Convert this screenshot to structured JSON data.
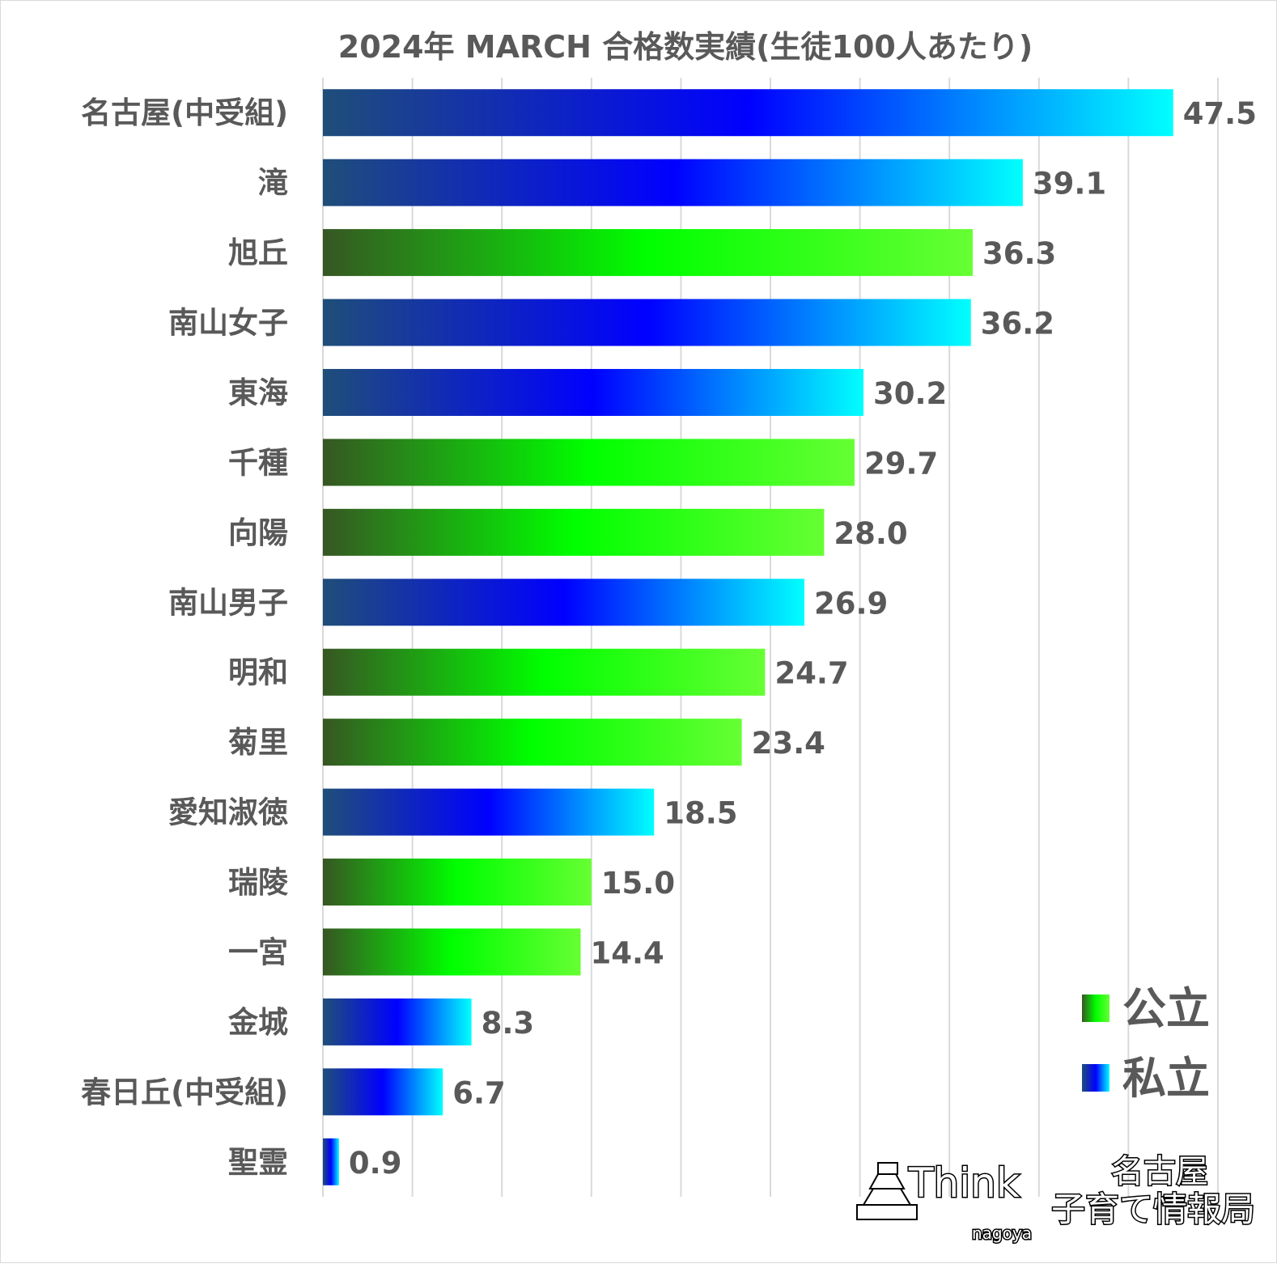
{
  "chart_data": {
    "type": "bar",
    "orientation": "horizontal",
    "title": "2024年 MARCH 合格数実績(生徒100人あたり)",
    "xlim": [
      0,
      50
    ],
    "grid": true,
    "gridlines_every": 5,
    "categories": [
      "名古屋(中受組)",
      "滝",
      "旭丘",
      "南山女子",
      "東海",
      "千種",
      "向陽",
      "南山男子",
      "明和",
      "菊里",
      "愛知淑徳",
      "瑞陵",
      "一宮",
      "金城",
      "春日丘(中受組)",
      "聖霊"
    ],
    "values": [
      47.5,
      39.1,
      36.3,
      36.2,
      30.2,
      29.7,
      28.0,
      26.9,
      24.7,
      23.4,
      18.5,
      15.0,
      14.4,
      8.3,
      6.7,
      0.9
    ],
    "value_labels": [
      "47.5",
      "39.1",
      "36.3",
      "36.2",
      "30.2",
      "29.7",
      "28.0",
      "26.9",
      "24.7",
      "23.4",
      "18.5",
      "15.0",
      "14.4",
      "8.3",
      "6.7",
      "0.9"
    ],
    "types": [
      "private",
      "private",
      "public",
      "private",
      "private",
      "public",
      "public",
      "private",
      "public",
      "public",
      "private",
      "public",
      "public",
      "private",
      "private",
      "private"
    ],
    "legend": {
      "placement": "bottom-right",
      "entries": [
        {
          "key": "public",
          "label": "公立"
        },
        {
          "key": "private",
          "label": "私立"
        }
      ]
    },
    "colors": {
      "public": [
        "#375623",
        "#00ff00",
        "#66ff33"
      ],
      "private": [
        "#1f4e79",
        "#0000ff",
        "#00ffff"
      ],
      "text": "#595959",
      "grid": "#d9d9d9"
    }
  },
  "logo": {
    "brand": "Think",
    "sub": "nagoya",
    "line1": "名古屋",
    "line2": "子育て情報局"
  }
}
